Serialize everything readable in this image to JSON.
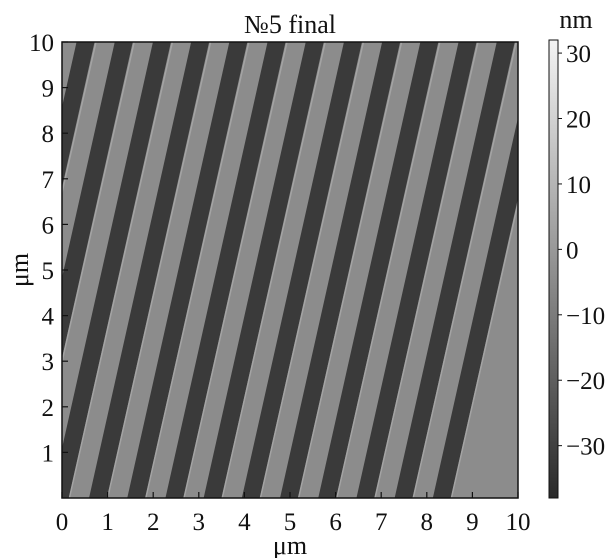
{
  "title": "№5 final",
  "x_axis": {
    "label": "μm",
    "ticks": [
      "0",
      "1",
      "2",
      "3",
      "4",
      "5",
      "6",
      "7",
      "8",
      "9",
      "10"
    ],
    "range": [
      0,
      10
    ]
  },
  "y_axis": {
    "label": "μm",
    "ticks": [
      "1",
      "2",
      "3",
      "4",
      "5",
      "6",
      "7",
      "8",
      "9",
      "10"
    ],
    "range": [
      0,
      10
    ]
  },
  "colorbar": {
    "unit": "nm",
    "ticks": [
      "30",
      "20",
      "10",
      "0",
      "−10",
      "−20",
      "−30"
    ],
    "tick_values": [
      30,
      20,
      10,
      0,
      -10,
      -20,
      -30
    ],
    "range": [
      -38,
      32
    ],
    "colormap": "grayscale"
  },
  "image": {
    "content": "AFM height map of periodic diagonal stripes",
    "stripe_count": 12,
    "dark_color": "#3a3a3a",
    "light_color": "#8c8c8c"
  }
}
